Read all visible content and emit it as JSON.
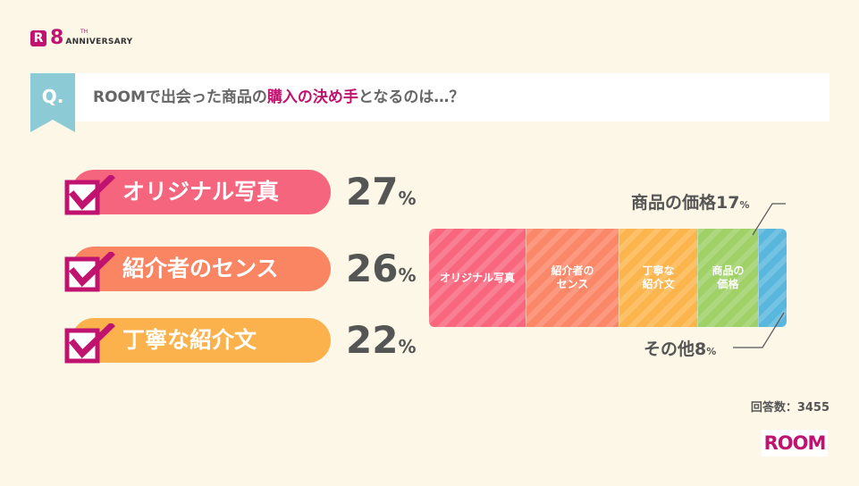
{
  "branding": {
    "logo_letter": "R",
    "anniversary_number": "8",
    "anniversary_suffix": "TH",
    "anniversary_text": "ANNIVERSARY",
    "footer_logo": "ROOM"
  },
  "question": {
    "tag": "Q.",
    "text_before": "ROOMで出会った商品の",
    "text_highlight": "購入の決め手",
    "text_after": "となるのは…？"
  },
  "colors": {
    "accent": "#c0136f",
    "q_tag": "#8ccbd5"
  },
  "chart_data": {
    "type": "bar",
    "orientation": "horizontal-stacked",
    "unit": "%",
    "top3": [
      {
        "label": "オリジナル写真",
        "value": 27,
        "color": "#f6657e"
      },
      {
        "label": "紹介者のセンス",
        "value": 26,
        "color": "#f98563"
      },
      {
        "label": "丁寧な紹介文",
        "value": 22,
        "color": "#fbb24d"
      }
    ],
    "segments": [
      {
        "label": "オリジナル写真",
        "value": 27,
        "color": "#f8677e"
      },
      {
        "label": "紹介者の\nセンス",
        "value": 26,
        "color": "#fa8768"
      },
      {
        "label": "丁寧な\n紹介文",
        "value": 22,
        "color": "#fcb54c"
      },
      {
        "label": "商品の\n価格",
        "value": 17,
        "color": "#9fd166"
      },
      {
        "label": "",
        "value": 8,
        "color": "#59b7de"
      }
    ],
    "callouts": [
      {
        "label": "商品の価格",
        "value": "17",
        "unit": "%"
      },
      {
        "label": "その他",
        "value": "8",
        "unit": "%"
      }
    ]
  },
  "footer": {
    "responses": "回答数：3455"
  }
}
